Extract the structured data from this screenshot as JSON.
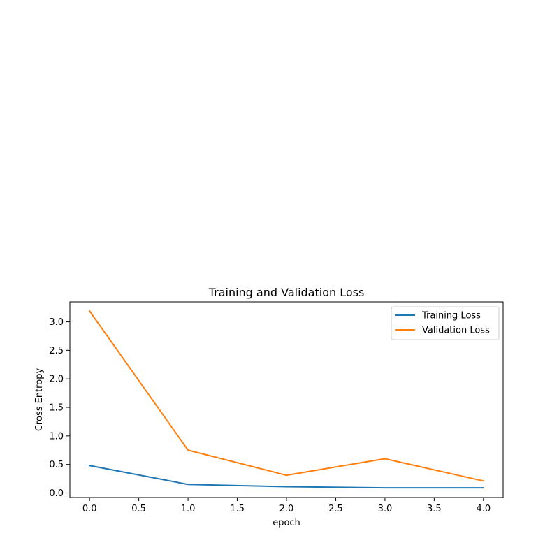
{
  "chart_data": {
    "type": "line",
    "title": "Training and Validation Loss",
    "xlabel": "epoch",
    "ylabel": "Cross Entropy",
    "x": [
      0,
      1,
      2,
      3,
      4
    ],
    "series": [
      {
        "name": "Training Loss",
        "color": "#1f77b4",
        "values": [
          0.48,
          0.15,
          0.11,
          0.09,
          0.09
        ]
      },
      {
        "name": "Validation Loss",
        "color": "#ff7f0e",
        "values": [
          3.19,
          0.75,
          0.31,
          0.6,
          0.21
        ]
      }
    ],
    "xlim": [
      -0.2,
      4.2
    ],
    "ylim": [
      -0.08,
      3.35
    ],
    "xticks": [
      0.0,
      0.5,
      1.0,
      1.5,
      2.0,
      2.5,
      3.0,
      3.5,
      4.0
    ],
    "xtick_labels": [
      "0.0",
      "0.5",
      "1.0",
      "1.5",
      "2.0",
      "2.5",
      "3.0",
      "3.5",
      "4.0"
    ],
    "yticks": [
      0.0,
      0.5,
      1.0,
      1.5,
      2.0,
      2.5,
      3.0
    ],
    "ytick_labels": [
      "0.0",
      "0.5",
      "1.0",
      "1.5",
      "2.0",
      "2.5",
      "3.0"
    ],
    "grid": false,
    "legend_position": "top-right"
  }
}
